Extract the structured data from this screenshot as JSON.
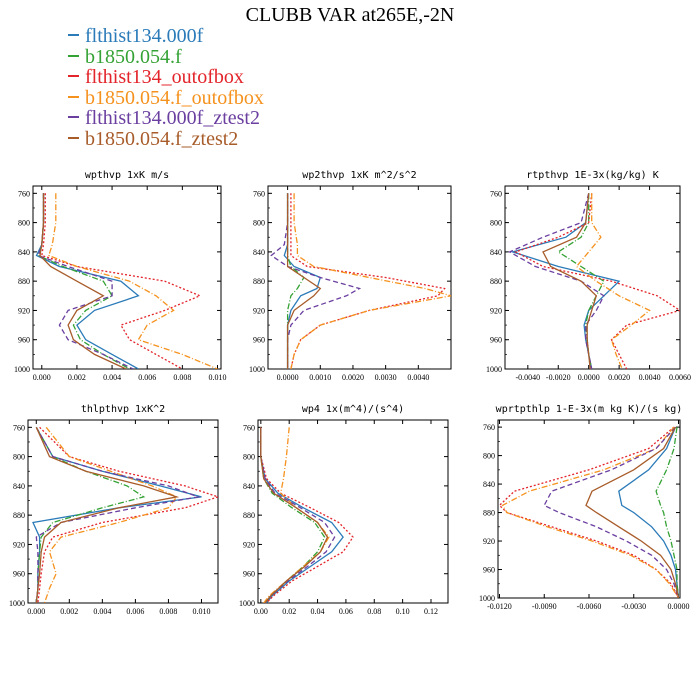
{
  "title": "CLUBB VAR at265E,-2N",
  "legend": [
    {
      "label": "flthist134.000f",
      "color": "#2b7bb9",
      "dash": "solid"
    },
    {
      "label": "b1850.054.f",
      "color": "#35a235",
      "dash": "dashdot"
    },
    {
      "label": "flthist134_outofbox",
      "color": "#e3242b",
      "dash": "dotted"
    },
    {
      "label": "b1850.054.f_outofbox",
      "color": "#f5921e",
      "dash": "dashdot"
    },
    {
      "label": "flthist134.000f_ztest2",
      "color": "#6a3fa0",
      "dash": "dashed"
    },
    {
      "label": "b1850.054.f_ztest2",
      "color": "#a85c2a",
      "dash": "solid"
    }
  ],
  "chart_data": [
    {
      "type": "line",
      "title": "wpthvp  1xK m/s",
      "xlim": [
        -0.0005,
        0.0102
      ],
      "ylim": [
        1000,
        750
      ],
      "xticks": [
        "0.000",
        "0.002",
        "0.004",
        "0.006",
        "0.008",
        "0.010"
      ],
      "xtick_values": [
        0,
        0.002,
        0.004,
        0.006,
        0.008,
        0.01
      ],
      "yticks": [
        "760",
        "800",
        "840",
        "880",
        "920",
        "960",
        "1000"
      ],
      "y": [
        760,
        800,
        830,
        845,
        860,
        880,
        900,
        920,
        940,
        960,
        980,
        1000
      ],
      "series": [
        {
          "name": "flthist134.000f",
          "x": [
            0.0001,
            0.0001,
            0.0,
            -0.0003,
            0.001,
            0.0045,
            0.0055,
            0.003,
            0.002,
            0.0025,
            0.004,
            0.0055
          ]
        },
        {
          "name": "b1850.054.f",
          "x": [
            0.0001,
            0.0001,
            0.0,
            -0.0002,
            0.0012,
            0.0035,
            0.004,
            0.0025,
            0.0018,
            0.0022,
            0.0035,
            0.005
          ]
        },
        {
          "name": "flthist134_outofbox",
          "x": [
            0.0002,
            0.0002,
            0.0001,
            0.0,
            0.002,
            0.007,
            0.009,
            0.007,
            0.0045,
            0.005,
            0.0065,
            0.008
          ]
        },
        {
          "name": "b1850.054.f_outofbox",
          "x": [
            0.0008,
            0.0008,
            0.0006,
            0.0004,
            0.002,
            0.005,
            0.0065,
            0.0075,
            0.006,
            0.0055,
            0.008,
            0.01
          ]
        },
        {
          "name": "flthist134.000f_ztest2",
          "x": [
            0.0001,
            0.0001,
            0.0,
            -0.0002,
            0.0015,
            0.004,
            0.004,
            0.0015,
            0.001,
            0.0015,
            0.0035,
            0.0052
          ]
        },
        {
          "name": "b1850.054.f_ztest2",
          "x": [
            0.0001,
            0.0001,
            0.0,
            -0.0001,
            0.0005,
            0.002,
            0.0035,
            0.002,
            0.0015,
            0.0018,
            0.003,
            0.0048
          ]
        }
      ]
    },
    {
      "type": "line",
      "title": "wp2thvp  1xK m^2/s^2",
      "xlim": [
        -0.0006,
        0.005
      ],
      "ylim": [
        1000,
        750
      ],
      "xticks": [
        "0.0000",
        "0.0010",
        "0.0020",
        "0.0030",
        "0.0040"
      ],
      "xtick_values": [
        0,
        0.001,
        0.002,
        0.003,
        0.004
      ],
      "yticks": [
        "760",
        "800",
        "840",
        "880",
        "920",
        "960",
        "1000"
      ],
      "y": [
        760,
        800,
        830,
        845,
        860,
        875,
        890,
        900,
        920,
        940,
        960,
        980,
        1000
      ],
      "series": [
        {
          "name": "flthist134.000f",
          "x": [
            0.0,
            0.0,
            0.0,
            -0.0001,
            0.0002,
            0.001,
            0.0009,
            0.0004,
            0.0001,
            0.0,
            0.0,
            0.0,
            0.0
          ]
        },
        {
          "name": "b1850.054.f",
          "x": [
            0.0,
            0.0,
            0.0,
            0.0,
            0.0001,
            0.0005,
            0.0003,
            0.0001,
            0.0,
            0.0,
            0.0,
            0.0,
            0.0
          ]
        },
        {
          "name": "flthist134_outofbox",
          "x": [
            0.0001,
            0.0001,
            0.0001,
            0.0001,
            0.0006,
            0.003,
            0.0048,
            0.0046,
            0.0025,
            0.001,
            0.0004,
            0.0002,
            0.0001
          ]
        },
        {
          "name": "b1850.054.f_outofbox",
          "x": [
            0.0002,
            0.0002,
            0.0003,
            0.0003,
            0.0008,
            0.0025,
            0.0042,
            0.005,
            0.0025,
            0.001,
            0.0004,
            0.0002,
            0.0001
          ]
        },
        {
          "name": "flthist134.000f_ztest2",
          "x": [
            0.0,
            0.0,
            -0.0001,
            -0.0005,
            0.0,
            0.001,
            0.0022,
            0.0018,
            0.0005,
            0.0001,
            0.0,
            0.0,
            0.0
          ]
        },
        {
          "name": "b1850.054.f_ztest2",
          "x": [
            0.0,
            0.0,
            0.0,
            0.0,
            0.0,
            0.0005,
            0.001,
            0.0008,
            0.0002,
            0.0,
            0.0,
            0.0,
            0.0
          ]
        }
      ]
    },
    {
      "type": "line",
      "title": "rtpthvp  1E-3x(kg/kg) K",
      "xlim": [
        -0.0055,
        0.006
      ],
      "ylim": [
        1000,
        750
      ],
      "xticks": [
        "-0.0040",
        "-0.0020",
        "0.0000",
        "0.0020",
        "0.0040",
        "0.0060"
      ],
      "xtick_values": [
        -0.004,
        -0.002,
        0,
        0.002,
        0.004,
        0.006
      ],
      "yticks": [
        "760",
        "800",
        "840",
        "880",
        "920",
        "960",
        "1000"
      ],
      "y": [
        760,
        800,
        820,
        840,
        860,
        880,
        900,
        920,
        940,
        960,
        980,
        1000
      ],
      "series": [
        {
          "name": "flthist134.000f",
          "x": [
            0.0,
            -0.0002,
            -0.0015,
            -0.005,
            -0.002,
            0.002,
            0.001,
            0.0,
            -0.0003,
            -0.0002,
            0.0,
            0.0002
          ]
        },
        {
          "name": "b1850.054.f",
          "x": [
            0.0,
            0.0,
            -0.0005,
            -0.002,
            -0.0005,
            0.001,
            0.0005,
            0.0,
            -0.0002,
            -0.0001,
            0.0,
            0.0002
          ]
        },
        {
          "name": "flthist134_outofbox",
          "x": [
            0.0002,
            0.0,
            -0.002,
            -0.0048,
            -0.003,
            0.0015,
            0.0045,
            0.006,
            0.0025,
            0.0015,
            0.002,
            0.0025
          ]
        },
        {
          "name": "b1850.054.f_outofbox",
          "x": [
            0.0002,
            0.0002,
            0.0008,
            0.0,
            -0.0008,
            0.0005,
            0.002,
            0.004,
            0.0028,
            0.0015,
            0.0018,
            0.0022
          ]
        },
        {
          "name": "flthist134.000f_ztest2",
          "x": [
            0.0,
            -0.0005,
            -0.003,
            -0.0052,
            -0.0035,
            -0.0005,
            0.001,
            0.0005,
            -0.0002,
            -0.0002,
            0.0,
            0.0002
          ]
        },
        {
          "name": "b1850.054.f_ztest2",
          "x": [
            0.0,
            -0.0002,
            -0.0008,
            -0.003,
            -0.0025,
            -0.0005,
            0.0005,
            0.0002,
            -0.0001,
            -0.0001,
            0.0,
            0.0001
          ]
        }
      ]
    },
    {
      "type": "line",
      "title": "thlpthvp  1xK^2",
      "xlim": [
        -0.0005,
        0.011
      ],
      "ylim": [
        1000,
        750
      ],
      "xticks": [
        "0.000",
        "0.002",
        "0.004",
        "0.006",
        "0.008",
        "0.010"
      ],
      "xtick_values": [
        0,
        0.002,
        0.004,
        0.006,
        0.008,
        0.01
      ],
      "yticks": [
        "760",
        "800",
        "840",
        "880",
        "920",
        "960",
        "1000"
      ],
      "y": [
        760,
        800,
        820,
        840,
        855,
        870,
        890,
        910,
        930,
        960,
        980,
        1000
      ],
      "series": [
        {
          "name": "flthist134.000f",
          "x": [
            0.0,
            0.001,
            0.004,
            0.0075,
            0.01,
            0.005,
            -0.0002,
            0.0002,
            0.0002,
            0.0001,
            0.0001,
            0.0
          ]
        },
        {
          "name": "b1850.054.f",
          "x": [
            0.0,
            0.001,
            0.003,
            0.0055,
            0.0065,
            0.004,
            0.001,
            0.0003,
            0.0002,
            0.0001,
            0.0001,
            0.0
          ]
        },
        {
          "name": "flthist134_outofbox",
          "x": [
            0.0002,
            0.002,
            0.005,
            0.009,
            0.011,
            0.009,
            0.004,
            0.001,
            0.0005,
            0.0003,
            0.0002,
            0.0001
          ]
        },
        {
          "name": "b1850.054.f_outofbox",
          "x": [
            0.0006,
            0.002,
            0.0045,
            0.007,
            0.0085,
            0.008,
            0.005,
            0.0015,
            0.0008,
            0.0012,
            0.0008,
            0.0005
          ]
        },
        {
          "name": "flthist134.000f_ztest2",
          "x": [
            0.0,
            0.001,
            0.004,
            0.008,
            0.0098,
            0.006,
            0.0015,
            0.0,
            0.0001,
            0.0001,
            0.0001,
            0.0
          ]
        },
        {
          "name": "b1850.054.f_ztest2",
          "x": [
            0.0,
            0.0008,
            0.003,
            0.0065,
            0.0085,
            0.005,
            0.0015,
            0.0005,
            0.0003,
            0.0002,
            0.0001,
            0.0
          ]
        }
      ]
    },
    {
      "type": "line",
      "title": "wp4  1x(m^4)/(s^4)",
      "xlim": [
        -0.002,
        0.132
      ],
      "ylim": [
        1000,
        750
      ],
      "xticks": [
        "0.00",
        "0.02",
        "0.04",
        "0.06",
        "0.08",
        "0.10",
        "0.12"
      ],
      "xtick_values": [
        0,
        0.02,
        0.04,
        0.06,
        0.08,
        0.1,
        0.12
      ],
      "yticks": [
        "760",
        "800",
        "840",
        "880",
        "920",
        "960",
        "1000"
      ],
      "y": [
        760,
        800,
        830,
        850,
        870,
        890,
        910,
        930,
        950,
        970,
        990,
        1000
      ],
      "series": [
        {
          "name": "flthist134.000f",
          "x": [
            0.0,
            0.0,
            0.003,
            0.012,
            0.03,
            0.05,
            0.058,
            0.05,
            0.035,
            0.02,
            0.008,
            0.004
          ]
        },
        {
          "name": "b1850.054.f",
          "x": [
            0.0,
            0.0,
            0.002,
            0.008,
            0.022,
            0.038,
            0.045,
            0.04,
            0.03,
            0.018,
            0.007,
            0.003
          ]
        },
        {
          "name": "flthist134_outofbox",
          "x": [
            0.0,
            0.0,
            0.004,
            0.014,
            0.035,
            0.055,
            0.065,
            0.058,
            0.04,
            0.022,
            0.009,
            0.004
          ]
        },
        {
          "name": "b1850.054.f_outofbox",
          "x": [
            0.02,
            0.018,
            0.016,
            0.014,
            0.025,
            0.04,
            0.048,
            0.042,
            0.03,
            0.018,
            0.006,
            0.002
          ]
        },
        {
          "name": "flthist134.000f_ztest2",
          "x": [
            0.0,
            0.0,
            0.003,
            0.01,
            0.028,
            0.045,
            0.052,
            0.046,
            0.033,
            0.019,
            0.007,
            0.003
          ]
        },
        {
          "name": "b1850.054.f_ztest2",
          "x": [
            0.0,
            0.0,
            0.002,
            0.009,
            0.025,
            0.04,
            0.047,
            0.042,
            0.031,
            0.018,
            0.007,
            0.003
          ]
        }
      ]
    },
    {
      "type": "line",
      "title": "wprtpthlp  1-E-3x(m kg K)/(s kg)",
      "xlim": [
        -0.0121,
        0.0001
      ],
      "ylim": [
        1000,
        750
      ],
      "xticks": [
        "-0.0120",
        "-0.0090",
        "-0.0060",
        "-0.0030",
        "0.0000"
      ],
      "xtick_values": [
        -0.012,
        -0.009,
        -0.006,
        -0.003,
        0
      ],
      "yticks": [
        "760",
        "800",
        "840",
        "880",
        "920",
        "960",
        "1000"
      ],
      "y": [
        760,
        790,
        820,
        850,
        870,
        880,
        900,
        920,
        940,
        960,
        980,
        1000
      ],
      "series": [
        {
          "name": "flthist134.000f",
          "x": [
            -0.0002,
            -0.0008,
            -0.002,
            -0.004,
            -0.0038,
            -0.003,
            -0.0018,
            -0.001,
            -0.0005,
            -0.0002,
            -0.0001,
            0.0
          ]
        },
        {
          "name": "b1850.054.f",
          "x": [
            -0.0001,
            -0.0003,
            -0.0008,
            -0.0015,
            -0.0012,
            -0.001,
            -0.0008,
            -0.0005,
            -0.0003,
            -0.0001,
            -0.0001,
            0.0
          ]
        },
        {
          "name": "flthist134_outofbox",
          "x": [
            -0.0003,
            -0.002,
            -0.006,
            -0.011,
            -0.012,
            -0.0115,
            -0.0085,
            -0.0055,
            -0.003,
            -0.0015,
            -0.0005,
            0.0
          ]
        },
        {
          "name": "b1850.054.f_outofbox",
          "x": [
            -0.0003,
            -0.0015,
            -0.005,
            -0.01,
            -0.0118,
            -0.0115,
            -0.0088,
            -0.0058,
            -0.0032,
            -0.0015,
            -0.0006,
            0.0
          ]
        },
        {
          "name": "flthist134.000f_ztest2",
          "x": [
            -0.0002,
            -0.0015,
            -0.0045,
            -0.0085,
            -0.009,
            -0.008,
            -0.0055,
            -0.0035,
            -0.0018,
            -0.0008,
            -0.0003,
            0.0
          ]
        },
        {
          "name": "b1850.054.f_ztest2",
          "x": [
            -0.0002,
            -0.001,
            -0.003,
            -0.0058,
            -0.0062,
            -0.0055,
            -0.004,
            -0.0025,
            -0.0012,
            -0.0005,
            -0.0002,
            0.0
          ]
        }
      ]
    }
  ]
}
